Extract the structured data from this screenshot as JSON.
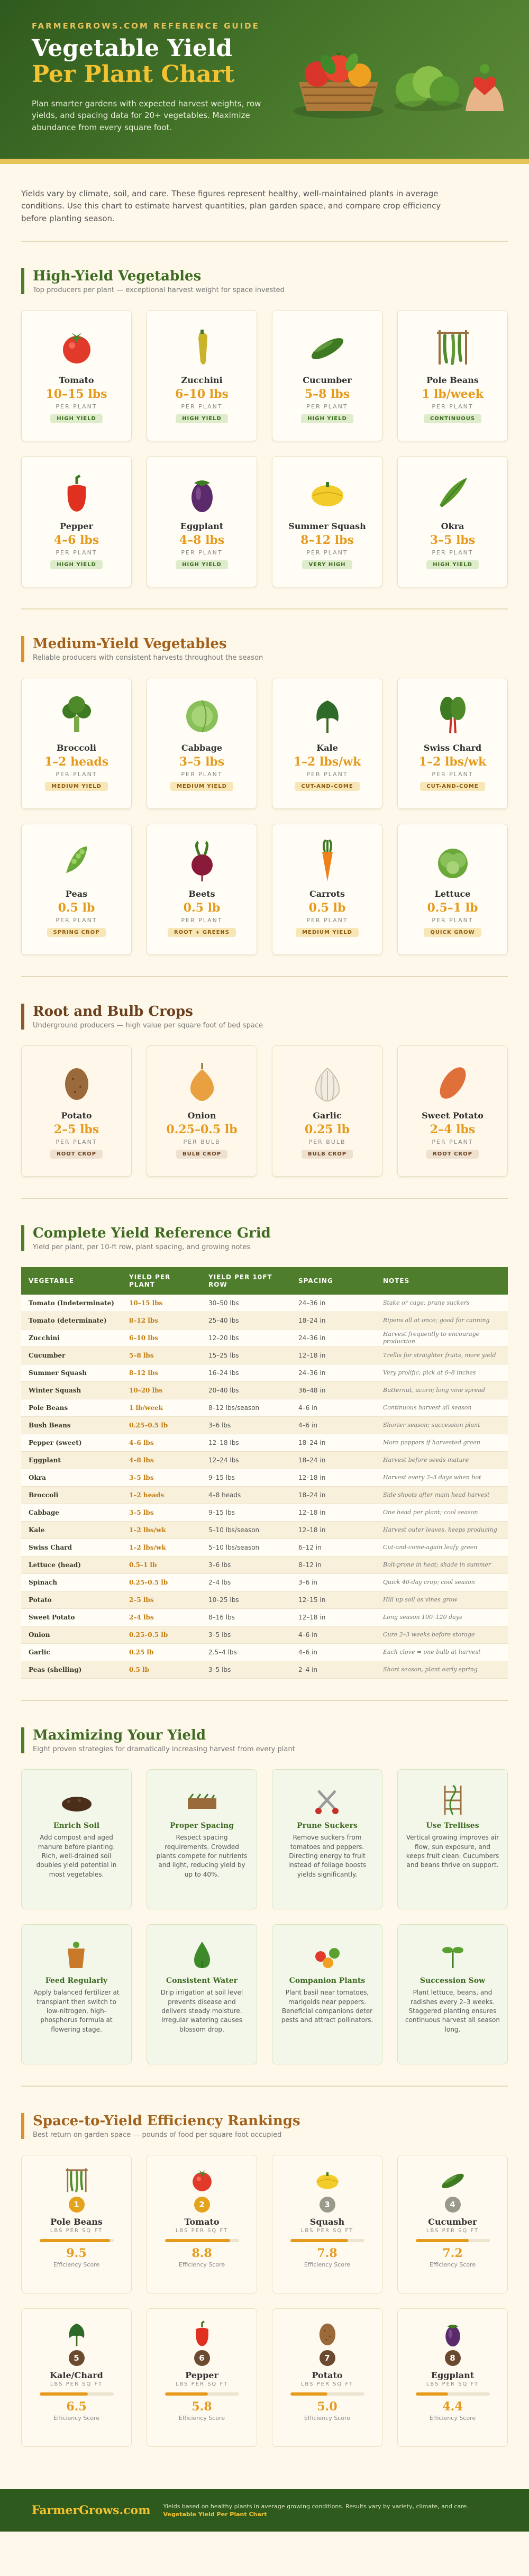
{
  "header": {
    "eyebrow": "FARMERGROWS.COM REFERENCE GUIDE",
    "title_line1": "Vegetable Yield",
    "title_line2": "Per Plant Chart",
    "description": "Plan smarter gardens with expected harvest weights, row yields, and spacing data for 20+ vegetables. Maximize abundance from every square foot."
  },
  "intro": "Yields vary by climate, soil, and care. These figures represent healthy, well-maintained plants in average conditions. Use this chart to estimate harvest quantities, plan garden space, and compare crop efficiency before planting season.",
  "high_yield": {
    "title": "High-Yield Vegetables",
    "subtitle": "Top producers per plant — exceptional harvest weight for space invested",
    "items": [
      {
        "name": "Tomato",
        "yield": "10–15 lbs",
        "unit": "PER PLANT",
        "badge": "HIGH YIELD",
        "icon": "tomato-icon"
      },
      {
        "name": "Zucchini",
        "yield": "6–10 lbs",
        "unit": "PER PLANT",
        "badge": "HIGH YIELD",
        "icon": "zucchini-icon"
      },
      {
        "name": "Cucumber",
        "yield": "5–8 lbs",
        "unit": "PER PLANT",
        "badge": "HIGH YIELD",
        "icon": "cucumber-icon"
      },
      {
        "name": "Pole Beans",
        "yield": "1 lb/week",
        "unit": "PER PLANT",
        "badge": "CONTINUOUS",
        "icon": "pole-beans-icon"
      },
      {
        "name": "Pepper",
        "yield": "4–6 lbs",
        "unit": "PER PLANT",
        "badge": "HIGH YIELD",
        "icon": "pepper-icon"
      },
      {
        "name": "Eggplant",
        "yield": "4–8 lbs",
        "unit": "PER PLANT",
        "badge": "HIGH YIELD",
        "icon": "eggplant-icon"
      },
      {
        "name": "Summer Squash",
        "yield": "8–12 lbs",
        "unit": "PER PLANT",
        "badge": "VERY HIGH",
        "icon": "summer-squash-icon"
      },
      {
        "name": "Okra",
        "yield": "3–5 lbs",
        "unit": "PER PLANT",
        "badge": "HIGH YIELD",
        "icon": "okra-icon"
      }
    ]
  },
  "medium_yield": {
    "title": "Medium-Yield Vegetables",
    "subtitle": "Reliable producers with consistent harvests throughout the season",
    "items": [
      {
        "name": "Broccoli",
        "yield": "1–2 heads",
        "unit": "PER PLANT",
        "badge": "MEDIUM YIELD",
        "icon": "broccoli-icon"
      },
      {
        "name": "Cabbage",
        "yield": "3–5 lbs",
        "unit": "PER PLANT",
        "badge": "MEDIUM YIELD",
        "icon": "cabbage-icon"
      },
      {
        "name": "Kale",
        "yield": "1–2 lbs/wk",
        "unit": "PER PLANT",
        "badge": "CUT-AND-COME",
        "icon": "kale-icon"
      },
      {
        "name": "Swiss Chard",
        "yield": "1–2 lbs/wk",
        "unit": "PER PLANT",
        "badge": "CUT-AND-COME",
        "icon": "swiss-chard-icon"
      },
      {
        "name": "Peas",
        "yield": "0.5 lb",
        "unit": "PER PLANT",
        "badge": "SPRING CROP",
        "icon": "peas-icon"
      },
      {
        "name": "Beets",
        "yield": "0.5 lb",
        "unit": "PER PLANT",
        "badge": "ROOT + GREENS",
        "icon": "beets-icon"
      },
      {
        "name": "Carrots",
        "yield": "0.5 lb",
        "unit": "PER PLANT",
        "badge": "MEDIUM YIELD",
        "icon": "carrot-icon"
      },
      {
        "name": "Lettuce",
        "yield": "0.5–1 lb",
        "unit": "PER PLANT",
        "badge": "QUICK GROW",
        "icon": "lettuce-icon"
      }
    ]
  },
  "root_crops": {
    "title": "Root and Bulb Crops",
    "subtitle": "Underground producers — high value per square foot of bed space",
    "items": [
      {
        "name": "Potato",
        "yield": "2–5 lbs",
        "unit": "PER PLANT",
        "badge": "ROOT CROP",
        "icon": "potato-icon"
      },
      {
        "name": "Onion",
        "yield": "0.25–0.5 lb",
        "unit": "PER BULB",
        "badge": "BULB CROP",
        "icon": "onion-icon"
      },
      {
        "name": "Garlic",
        "yield": "0.25 lb",
        "unit": "PER BULB",
        "badge": "BULB CROP",
        "icon": "garlic-icon"
      },
      {
        "name": "Sweet Potato",
        "yield": "2–4 lbs",
        "unit": "PER PLANT",
        "badge": "ROOT CROP",
        "icon": "sweet-potato-icon"
      }
    ]
  },
  "reference": {
    "title": "Complete Yield Reference Grid",
    "subtitle": "Yield per plant, per 10-ft row, plant spacing, and growing notes",
    "columns": [
      "VEGETABLE",
      "YIELD PER PLANT",
      "YIELD PER 10FT ROW",
      "SPACING",
      "NOTES"
    ],
    "rows": [
      [
        "Tomato (Indeterminate)",
        "10–15 lbs",
        "30–50 lbs",
        "24–36 in",
        "Stake or cage; prune suckers"
      ],
      [
        "Tomato (determinate)",
        "8–12 lbs",
        "25–40 lbs",
        "18–24 in",
        "Ripens all at once; good for canning"
      ],
      [
        "Zucchini",
        "6–10 lbs",
        "12–20 lbs",
        "24–36 in",
        "Harvest frequently to encourage production"
      ],
      [
        "Cucumber",
        "5–8 lbs",
        "15–25 lbs",
        "12–18 in",
        "Trellis for straighter fruits, more yield"
      ],
      [
        "Summer Squash",
        "8–12 lbs",
        "16–24 lbs",
        "24–36 in",
        "Very prolific; pick at 6–8 inches"
      ],
      [
        "Winter Squash",
        "10–20 lbs",
        "20–40 lbs",
        "36–48 in",
        "Butternut, acorn; long vine spread"
      ],
      [
        "Pole Beans",
        "1 lb/week",
        "8–12 lbs/season",
        "4–6 in",
        "Continuous harvest all season"
      ],
      [
        "Bush Beans",
        "0.25–0.5 lb",
        "3–6 lbs",
        "4–6 in",
        "Shorter season; succession plant"
      ],
      [
        "Pepper (sweet)",
        "4–6 lbs",
        "12–18 lbs",
        "18–24 in",
        "More peppers if harvested green"
      ],
      [
        "Eggplant",
        "4–8 lbs",
        "12–24 lbs",
        "18–24 in",
        "Harvest before seeds mature"
      ],
      [
        "Okra",
        "3–5 lbs",
        "9–15 lbs",
        "12–18 in",
        "Harvest every 2–3 days when hot"
      ],
      [
        "Broccoli",
        "1–2 heads",
        "4–8 heads",
        "18–24 in",
        "Side shoots after main head harvest"
      ],
      [
        "Cabbage",
        "3–5 lbs",
        "9–15 lbs",
        "12–18 in",
        "One head per plant; cool season"
      ],
      [
        "Kale",
        "1–2 lbs/wk",
        "5–10 lbs/season",
        "12–18 in",
        "Harvest outer leaves, keeps producing"
      ],
      [
        "Swiss Chard",
        "1–2 lbs/wk",
        "5–10 lbs/season",
        "6–12 in",
        "Cut-and-come-again leafy green"
      ],
      [
        "Lettuce (head)",
        "0.5–1 lb",
        "3–6 lbs",
        "8–12 in",
        "Bolt-prone in heat; shade in summer"
      ],
      [
        "Spinach",
        "0.25–0.5 lb",
        "2–4 lbs",
        "3–6 in",
        "Quick 40-day crop; cool season"
      ],
      [
        "Potato",
        "2–5 lbs",
        "10–25 lbs",
        "12–15 in",
        "Hill up soil as vines grow"
      ],
      [
        "Sweet Potato",
        "2–4 lbs",
        "8–16 lbs",
        "12–18 in",
        "Long season 100–120 days"
      ],
      [
        "Onion",
        "0.25–0.5 lb",
        "3–5 lbs",
        "4–6 in",
        "Cure 2–3 weeks before storage"
      ],
      [
        "Garlic",
        "0.25 lb",
        "2.5–4 lbs",
        "4–6 in",
        "Each clove = one bulb at harvest"
      ],
      [
        "Peas (shelling)",
        "0.5 lb",
        "3–5 lbs",
        "2–4 in",
        "Short season, plant early spring"
      ]
    ]
  },
  "tips": {
    "title": "Maximizing Your Yield",
    "subtitle": "Eight proven strategies for dramatically increasing harvest from every plant",
    "items": [
      {
        "title": "Enrich Soil",
        "desc": "Add compost and aged manure before planting. Rich, well-drained soil doubles yield potential in most vegetables.",
        "icon": "soil-icon"
      },
      {
        "title": "Proper Spacing",
        "desc": "Respect spacing requirements. Crowded plants compete for nutrients and light, reducing yield by up to 40%.",
        "icon": "spacing-icon"
      },
      {
        "title": "Prune Suckers",
        "desc": "Remove suckers from tomatoes and peppers. Directing energy to fruit instead of foliage boosts yields significantly.",
        "icon": "pruning-shears-icon"
      },
      {
        "title": "Use Trellises",
        "desc": "Vertical growing improves air flow, sun exposure, and keeps fruit clean. Cucumbers and beans thrive on support.",
        "icon": "trellis-icon"
      },
      {
        "title": "Feed Regularly",
        "desc": "Apply balanced fertilizer at transplant then switch to low-nitrogen, high-phosphorus formula at flowering stage.",
        "icon": "fertilizer-icon"
      },
      {
        "title": "Consistent Water",
        "desc": "Drip irrigation at soil level prevents disease and delivers steady moisture. Irregular watering causes blossom drop.",
        "icon": "water-drop-icon"
      },
      {
        "title": "Companion Plants",
        "desc": "Plant basil near tomatoes, marigolds near peppers. Beneficial companions deter pests and attract pollinators.",
        "icon": "companion-plants-icon"
      },
      {
        "title": "Succession Sow",
        "desc": "Plant lettuce, beans, and radishes every 2–3 weeks. Staggered planting ensures continuous harvest all season long.",
        "icon": "seedling-icon"
      }
    ]
  },
  "rankings": {
    "title": "Space-to-Yield Efficiency Rankings",
    "subtitle": "Best return on garden space — pounds of food per square foot occupied",
    "score_label": "Efficiency Score",
    "max_score": 10,
    "items": [
      {
        "rank": "1",
        "name": "Pole Beans",
        "unit": "LBS PER SQ FT",
        "score": 9.5,
        "score_text": "9.5",
        "color": "#e5a21c",
        "icon": "pole-beans-icon"
      },
      {
        "rank": "2",
        "name": "Tomato",
        "unit": "LBS PER SQ FT",
        "score": 8.8,
        "score_text": "8.8",
        "color": "#e5a21c",
        "icon": "tomato-icon"
      },
      {
        "rank": "3",
        "name": "Squash",
        "unit": "LBS PER SQ FT",
        "score": 7.8,
        "score_text": "7.8",
        "color": "#9a9a8a",
        "icon": "squash-icon"
      },
      {
        "rank": "4",
        "name": "Cucumber",
        "unit": "LBS PER SQ FT",
        "score": 7.2,
        "score_text": "7.2",
        "color": "#9a9a8a",
        "icon": "cucumber-icon"
      },
      {
        "rank": "5",
        "name": "Kale/Chard",
        "unit": "LBS PER SQ FT",
        "score": 6.5,
        "score_text": "6.5",
        "color": "#6b4a30",
        "icon": "kale-icon"
      },
      {
        "rank": "6",
        "name": "Pepper",
        "unit": "LBS PER SQ FT",
        "score": 5.8,
        "score_text": "5.8",
        "color": "#6b4a30",
        "icon": "pepper-icon"
      },
      {
        "rank": "7",
        "name": "Potato",
        "unit": "LBS PER SQ FT",
        "score": 5.0,
        "score_text": "5.0",
        "color": "#6b4a30",
        "icon": "potato-icon"
      },
      {
        "rank": "8",
        "name": "Eggplant",
        "unit": "LBS PER SQ FT",
        "score": 4.4,
        "score_text": "4.4",
        "color": "#6b4a30",
        "icon": "eggplant-icon"
      }
    ]
  },
  "footer": {
    "brand": "FarmerGrows.com",
    "note_prefix": "Yields based on healthy plants in average growing conditions. Results vary by variety, climate, and care.",
    "note_link": "Vegetable Yield Per Plant Chart"
  },
  "colors": {
    "primary_green": "#4e7d2c",
    "accent_orange": "#e59a1c",
    "accent_gold": "#f2c230",
    "root_brown": "#8a5a2c"
  }
}
